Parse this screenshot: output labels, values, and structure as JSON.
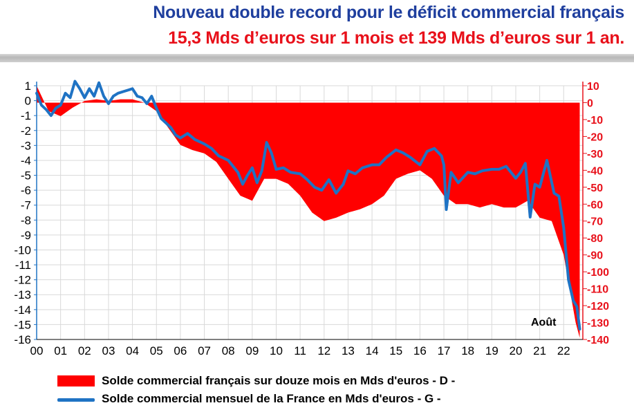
{
  "title": "Nouveau double record pour le déficit commercial français",
  "subtitle": "15,3 Mds d’euros sur 1 mois et 139 Mds d’euros sur 1 an.",
  "colors": {
    "title": "#1f3f9e",
    "subtitle": "#e8101a",
    "area": "#ff0000",
    "line": "#1f73c4",
    "left_axis": "#1f73c4",
    "right_axis": "#e8101a",
    "grid": "#d9d9d9"
  },
  "chart_data": {
    "type": "area",
    "annotation": "Août",
    "grid": true,
    "x_tick_labels": [
      "00",
      "01",
      "02",
      "03",
      "04",
      "05",
      "06",
      "07",
      "08",
      "09",
      "10",
      "11",
      "12",
      "13",
      "14",
      "15",
      "16",
      "17",
      "18",
      "19",
      "20",
      "21",
      "22"
    ],
    "y_left": {
      "min": -16,
      "max": 1,
      "ticks": [
        1,
        0,
        -1,
        -2,
        -3,
        -4,
        -5,
        -6,
        -7,
        -8,
        -9,
        -10,
        -11,
        -12,
        -13,
        -14,
        -15,
        -16
      ],
      "color": "#1f73c4"
    },
    "y_right": {
      "min": -140,
      "max": 10,
      "ticks": [
        10,
        0,
        -10,
        -20,
        -30,
        -40,
        -50,
        -60,
        -70,
        -80,
        -90,
        -100,
        -110,
        -120,
        -130,
        -140
      ],
      "color": "#e8101a"
    },
    "series": [
      {
        "name": "Solde commercial français sur douze mois en Mds d'euros - D -",
        "axis": "right",
        "kind": "area",
        "x": [
          2000.0,
          2000.5,
          2001.0,
          2001.5,
          2002.0,
          2002.5,
          2003.0,
          2003.5,
          2004.0,
          2004.5,
          2005.0,
          2005.5,
          2006.0,
          2006.5,
          2007.0,
          2007.5,
          2008.0,
          2008.5,
          2009.0,
          2009.5,
          2010.0,
          2010.5,
          2011.0,
          2011.5,
          2012.0,
          2012.5,
          2013.0,
          2013.5,
          2014.0,
          2014.5,
          2015.0,
          2015.5,
          2016.0,
          2016.5,
          2017.0,
          2017.5,
          2018.0,
          2018.5,
          2019.0,
          2019.5,
          2020.0,
          2020.5,
          2021.0,
          2021.5,
          2022.0,
          2022.25,
          2022.5,
          2022.67
        ],
        "values": [
          10,
          -5,
          -8,
          -3,
          1,
          2,
          1,
          2,
          2,
          0,
          -5,
          -15,
          -25,
          -28,
          -30,
          -35,
          -45,
          -55,
          -58,
          -45,
          -45,
          -48,
          -55,
          -65,
          -70,
          -68,
          -65,
          -63,
          -60,
          -55,
          -45,
          -42,
          -40,
          -45,
          -55,
          -60,
          -60,
          -62,
          -60,
          -62,
          -62,
          -58,
          -68,
          -70,
          -90,
          -110,
          -130,
          -139
        ]
      },
      {
        "name": "Solde commercial mensuel de la France en Mds d'euros - G -",
        "axis": "left",
        "kind": "line",
        "x": [
          2000.0,
          2000.2,
          2000.4,
          2000.6,
          2000.8,
          2001.0,
          2001.2,
          2001.4,
          2001.6,
          2001.8,
          2002.0,
          2002.2,
          2002.4,
          2002.6,
          2002.8,
          2003.0,
          2003.2,
          2003.4,
          2003.6,
          2003.8,
          2004.0,
          2004.2,
          2004.4,
          2004.6,
          2004.8,
          2005.0,
          2005.2,
          2005.4,
          2005.6,
          2005.8,
          2006.0,
          2006.3,
          2006.6,
          2007.0,
          2007.3,
          2007.6,
          2008.0,
          2008.2,
          2008.4,
          2008.6,
          2008.8,
          2009.0,
          2009.2,
          2009.4,
          2009.6,
          2009.8,
          2010.0,
          2010.3,
          2010.6,
          2011.0,
          2011.3,
          2011.6,
          2011.9,
          2012.2,
          2012.5,
          2012.8,
          2013.0,
          2013.3,
          2013.6,
          2014.0,
          2014.3,
          2014.6,
          2015.0,
          2015.3,
          2015.6,
          2016.0,
          2016.3,
          2016.6,
          2016.9,
          2017.0,
          2017.1,
          2017.3,
          2017.6,
          2018.0,
          2018.3,
          2018.6,
          2019.0,
          2019.3,
          2019.6,
          2020.0,
          2020.2,
          2020.4,
          2020.6,
          2020.8,
          2021.0,
          2021.3,
          2021.6,
          2021.8,
          2022.0,
          2022.2,
          2022.4,
          2022.55,
          2022.67
        ],
        "values": [
          0.5,
          -0.3,
          -0.6,
          -1.0,
          -0.5,
          -0.3,
          0.5,
          0.2,
          1.3,
          0.8,
          0.2,
          0.8,
          0.3,
          1.2,
          0.3,
          -0.2,
          0.3,
          0.5,
          0.6,
          0.7,
          0.8,
          0.3,
          0.2,
          -0.2,
          0.3,
          -0.5,
          -1.2,
          -1.5,
          -1.8,
          -2.3,
          -2.5,
          -2.2,
          -2.6,
          -2.9,
          -3.2,
          -3.7,
          -4.0,
          -4.4,
          -4.8,
          -5.6,
          -5.0,
          -4.5,
          -5.5,
          -4.7,
          -2.8,
          -3.5,
          -4.6,
          -4.5,
          -4.8,
          -4.9,
          -5.3,
          -5.8,
          -6.0,
          -5.3,
          -6.2,
          -5.6,
          -4.7,
          -4.9,
          -4.5,
          -4.3,
          -4.3,
          -3.8,
          -3.3,
          -3.5,
          -3.8,
          -4.3,
          -3.4,
          -3.2,
          -3.7,
          -4.3,
          -7.3,
          -4.8,
          -5.5,
          -4.8,
          -4.9,
          -4.7,
          -4.6,
          -4.6,
          -4.4,
          -5.2,
          -4.8,
          -4.2,
          -7.8,
          -5.6,
          -5.8,
          -4.0,
          -6.2,
          -6.4,
          -8.5,
          -12.0,
          -13.4,
          -13.8,
          -15.3
        ]
      }
    ]
  },
  "legend": {
    "area_label": "Solde commercial français sur douze mois en Mds d'euros - D -",
    "line_label": "Solde commercial mensuel de la France en Mds d'euros - G -"
  }
}
